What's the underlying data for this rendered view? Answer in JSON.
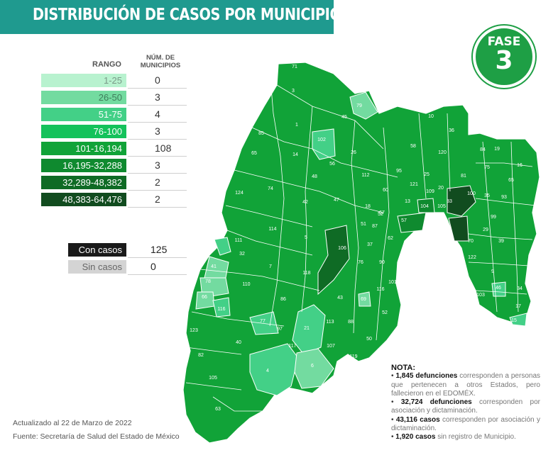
{
  "header": {
    "title": "DISTRIBUCIÓN DE CASOS POR MUNICIPIO"
  },
  "fase": {
    "label": "FASE",
    "number": "3"
  },
  "legend": {
    "range_header": "RANGO",
    "count_header_line1": "NÚM. DE",
    "count_header_line2": "MUNICIPIOS",
    "rows": [
      {
        "range": "1-25",
        "count": "0",
        "color": "#b8f2cf",
        "text_color": "#7a9a88"
      },
      {
        "range": "26-50",
        "count": "3",
        "color": "#73dba0",
        "text_color": "#3f7d5b"
      },
      {
        "range": "51-75",
        "count": "4",
        "color": "#43d087",
        "text_color": "#ffffff"
      },
      {
        "range": "76-100",
        "count": "3",
        "color": "#14c25b",
        "text_color": "#ffffff"
      },
      {
        "range": "101-16,194",
        "count": "108",
        "color": "#11a338",
        "text_color": "#ffffff"
      },
      {
        "range": "16,195-32,288",
        "count": "3",
        "color": "#0f8a2f",
        "text_color": "#ffffff"
      },
      {
        "range": "32,289-48,382",
        "count": "2",
        "color": "#0f6b25",
        "text_color": "#ffffff"
      },
      {
        "range": "48,383-64,476",
        "count": "2",
        "color": "#114c1f",
        "text_color": "#ffffff"
      }
    ]
  },
  "status": {
    "with_label": "Con casos",
    "with_count": "125",
    "with_color": "#1a1a1a",
    "without_label": "Sin casos",
    "without_count": "0",
    "without_color": "#d4d4d4"
  },
  "footer": {
    "updated": "Actualizado al 22 de Marzo de 2022",
    "source": "Fuente: Secretaría de Salud del Estado de México"
  },
  "note": {
    "title": "NOTA:",
    "items": [
      {
        "bold": "1,845 defunciones",
        "text": " corresponden a personas que pertenecen a otros Estados, pero fallecieron en el EDOMÉX."
      },
      {
        "bold": "32,724 defunciones",
        "text": " corresponden por asociación y dictaminación."
      },
      {
        "bold": "43,116 casos",
        "text": " corresponden por asociación y dictaminación."
      },
      {
        "bold": "1,920 casos",
        "text": " sin registro de Municipio."
      }
    ]
  },
  "map": {
    "municipality_labels": [
      "71",
      "3",
      "79",
      "45",
      "1",
      "102",
      "85",
      "65",
      "14",
      "56",
      "26",
      "112",
      "48",
      "124",
      "74",
      "42",
      "47",
      "18",
      "95",
      "10",
      "36",
      "58",
      "120",
      "84",
      "19",
      "75",
      "16",
      "65",
      "93",
      "99",
      "39",
      "29",
      "70",
      "122",
      "100",
      "35",
      "57",
      "60",
      "121",
      "109",
      "20",
      "81",
      "25",
      "13",
      "104",
      "33",
      "31",
      "105",
      "52",
      "106",
      "111",
      "32",
      "41",
      "114",
      "5",
      "118",
      "7",
      "110",
      "78",
      "66",
      "116",
      "86",
      "97",
      "77",
      "21",
      "113",
      "88",
      "123",
      "82",
      "40",
      "107",
      "80",
      "4",
      "117",
      "6",
      "105",
      "63",
      "52",
      "50",
      "103",
      "9",
      "34",
      "15",
      "17",
      "46",
      "67",
      "51",
      "37",
      "62",
      "90",
      "43",
      "101",
      "116",
      "87",
      "119",
      "69",
      "76"
    ]
  }
}
